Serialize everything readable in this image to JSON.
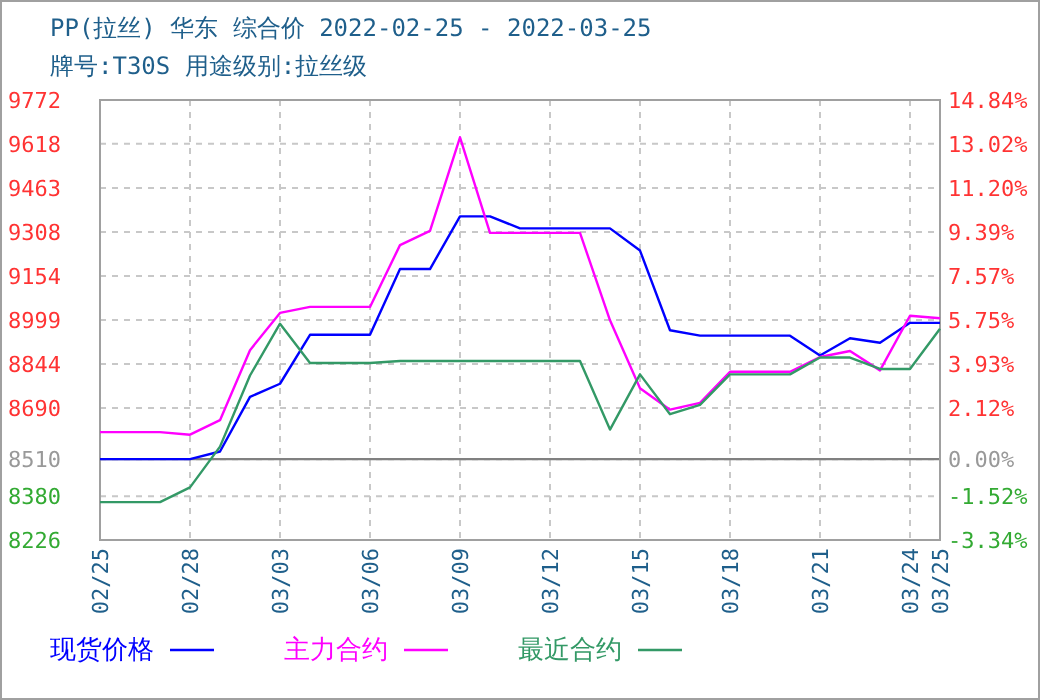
{
  "chart_data": {
    "type": "line",
    "title": "PP(拉丝) 华东 综合价 2022-02-25 - 2022-03-25",
    "subtitle": "牌号:T30S 用途级别:拉丝级",
    "x": [
      "2022-02-25",
      "2022-02-26",
      "2022-02-27",
      "2022-02-28",
      "2022-03-01",
      "2022-03-02",
      "2022-03-03",
      "2022-03-04",
      "2022-03-05",
      "2022-03-06",
      "2022-03-07",
      "2022-03-08",
      "2022-03-09",
      "2022-03-10",
      "2022-03-11",
      "2022-03-12",
      "2022-03-13",
      "2022-03-14",
      "2022-03-15",
      "2022-03-16",
      "2022-03-17",
      "2022-03-18",
      "2022-03-19",
      "2022-03-20",
      "2022-03-21",
      "2022-03-22",
      "2022-03-23",
      "2022-03-24",
      "2022-03-25"
    ],
    "series": [
      {
        "name": "现货价格",
        "color": "#0000ff",
        "values": [
          8510,
          8510,
          8510,
          8510,
          8537,
          8729,
          8775,
          8947,
          8947,
          8947,
          9178,
          9178,
          9363,
          9363,
          9321,
          9321,
          9321,
          9321,
          9243,
          8963,
          8944,
          8944,
          8944,
          8944,
          8874,
          8935,
          8919,
          8989,
          8989
        ]
      },
      {
        "name": "主力合约",
        "color": "#ff00ff",
        "values": [
          8605,
          8605,
          8605,
          8596,
          8647,
          8893,
          9024,
          9045,
          9045,
          9045,
          9262,
          9312,
          9641,
          9305,
          9305,
          9305,
          9305,
          8998,
          8759,
          8684,
          8708,
          8817,
          8817,
          8817,
          8869,
          8890,
          8822,
          9014,
          9005
        ]
      },
      {
        "name": "最近合约",
        "color": "#339966",
        "values": [
          8359,
          8359,
          8359,
          8411,
          8554,
          8804,
          8986,
          8848,
          8848,
          8848,
          8855,
          8855,
          8855,
          8855,
          8855,
          8855,
          8855,
          8614,
          8808,
          8668,
          8701,
          8808,
          8808,
          8808,
          8867,
          8867,
          8827,
          8827,
          8968
        ]
      }
    ],
    "xlim": [
      "2022-02-25",
      "2022-03-25"
    ],
    "xticks": [
      {
        "value": "2022-02-25",
        "label": "02/25"
      },
      {
        "value": "2022-02-28",
        "label": "02/28"
      },
      {
        "value": "2022-03-03",
        "label": "03/03"
      },
      {
        "value": "2022-03-06",
        "label": "03/06"
      },
      {
        "value": "2022-03-09",
        "label": "03/09"
      },
      {
        "value": "2022-03-12",
        "label": "03/12"
      },
      {
        "value": "2022-03-15",
        "label": "03/15"
      },
      {
        "value": "2022-03-18",
        "label": "03/18"
      },
      {
        "value": "2022-03-21",
        "label": "03/21"
      },
      {
        "value": "2022-03-24",
        "label": "03/24"
      },
      {
        "value": "2022-03-25",
        "label": "03/25"
      }
    ],
    "ylim": [
      8226,
      9772
    ],
    "yticks": [
      9772,
      9618,
      9463,
      9308,
      9154,
      8999,
      8844,
      8690,
      8510,
      8380,
      8226
    ],
    "y2lim": [
      -3.34,
      14.84
    ],
    "y2ticks": [
      {
        "value": 14.84,
        "label": "14.84%"
      },
      {
        "value": 13.02,
        "label": "13.02%"
      },
      {
        "value": 11.2,
        "label": "11.20%"
      },
      {
        "value": 9.39,
        "label": "9.39%"
      },
      {
        "value": 7.57,
        "label": "7.57%"
      },
      {
        "value": 5.75,
        "label": "5.75%"
      },
      {
        "value": 3.93,
        "label": "3.93%"
      },
      {
        "value": 2.12,
        "label": "2.12%"
      },
      {
        "value": 0,
        "label": "0.00%"
      },
      {
        "value": -1.52,
        "label": "-1.52%"
      },
      {
        "value": -3.34,
        "label": "-3.34%"
      }
    ],
    "ref_lines": [
      {
        "axis": "y",
        "value": 8510,
        "color": "#808080"
      }
    ],
    "grid": true,
    "legend": "bottom"
  }
}
